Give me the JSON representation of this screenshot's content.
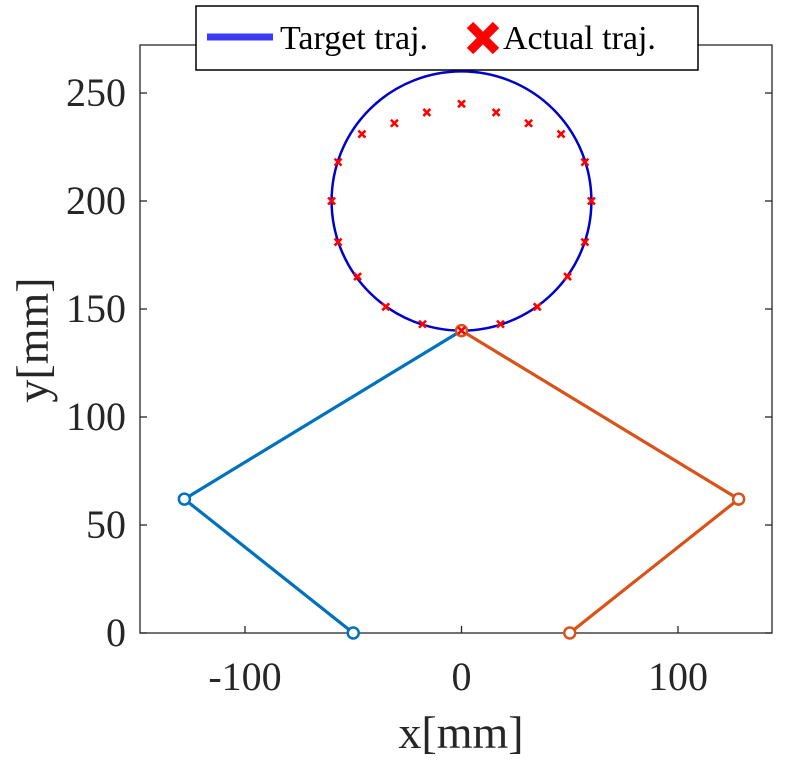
{
  "chart_data": {
    "type": "line",
    "title": "",
    "xlabel": "x[mm]",
    "ylabel": "y[mm]",
    "xlim": [
      -150,
      150
    ],
    "ylim": [
      0,
      260
    ],
    "xticks": [
      -100,
      0,
      100
    ],
    "xtick_labels": [
      "-100",
      "0",
      "100"
    ],
    "yticks": [
      0,
      50,
      100,
      150,
      200,
      250
    ],
    "ytick_labels": [
      "0",
      "50",
      "100",
      "150",
      "200",
      "250"
    ],
    "grid": false,
    "legend_position": "top-center",
    "series": [
      {
        "name": "Target traj.",
        "kind": "circle",
        "color": "#0000cc",
        "center": [
          0,
          200
        ],
        "radius": 60
      },
      {
        "name": "Actual traj.",
        "kind": "scatter",
        "marker": "x",
        "color": "#ff0000",
        "points": [
          [
            0,
            140
          ],
          [
            18,
            143
          ],
          [
            35,
            151
          ],
          [
            49,
            165
          ],
          [
            57,
            181
          ],
          [
            60,
            200
          ],
          [
            57,
            218
          ],
          [
            46,
            231
          ],
          [
            31,
            236
          ],
          [
            16,
            241
          ],
          [
            0,
            245
          ],
          [
            -16,
            241
          ],
          [
            -31,
            236
          ],
          [
            -46,
            231
          ],
          [
            -57,
            218
          ],
          [
            -60,
            200
          ],
          [
            -57,
            181
          ],
          [
            -48,
            165
          ],
          [
            -35,
            151
          ],
          [
            -18,
            143
          ]
        ]
      },
      {
        "kind": "link",
        "color": "#0072bd",
        "points": [
          [
            -50,
            0
          ],
          [
            -128,
            62
          ],
          [
            0,
            140
          ]
        ],
        "joints": [
          [
            -50,
            0
          ],
          [
            -128,
            62
          ]
        ]
      },
      {
        "kind": "link",
        "color": "#d95319",
        "points": [
          [
            50,
            0
          ],
          [
            128,
            62
          ],
          [
            0,
            140
          ]
        ],
        "joints": [
          [
            50,
            0
          ],
          [
            128,
            62
          ],
          [
            0,
            140
          ]
        ]
      }
    ]
  }
}
